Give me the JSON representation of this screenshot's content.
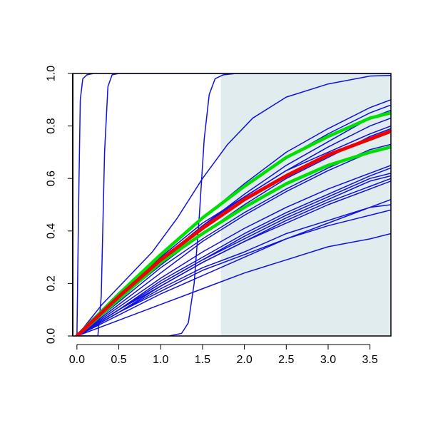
{
  "chart_data": {
    "type": "line",
    "title": "",
    "xlabel": "",
    "ylabel": "",
    "xlim": [
      -0.05,
      3.75
    ],
    "ylim": [
      0,
      1
    ],
    "grid": false,
    "legend": "none",
    "x_ticks": [
      "0.0",
      "0.5",
      "1.0",
      "1.5",
      "2.0",
      "2.5",
      "3.0",
      "3.5"
    ],
    "y_ticks": [
      "0.0",
      "0.2",
      "0.4",
      "0.6",
      "0.8",
      "1.0"
    ],
    "shaded_region": {
      "x": [
        1.72,
        3.75
      ],
      "color": "#e0eced"
    },
    "colors": {
      "blue": "#1010e0",
      "green": "#00e000",
      "red": "#f00000",
      "axis": "#000000"
    },
    "series": [
      {
        "color": "blue",
        "width": 1.5,
        "points": [
          [
            0.0,
            0.0
          ],
          [
            0.5,
            0.16
          ],
          [
            1.0,
            0.3
          ],
          [
            1.5,
            0.43
          ],
          [
            2.0,
            0.53
          ],
          [
            2.5,
            0.63
          ],
          [
            3.0,
            0.7
          ],
          [
            3.5,
            0.77
          ],
          [
            3.75,
            0.8
          ]
        ]
      },
      {
        "color": "blue",
        "width": 1.5,
        "points": [
          [
            0.0,
            0.0
          ],
          [
            0.5,
            0.15
          ],
          [
            1.0,
            0.29
          ],
          [
            1.5,
            0.42
          ],
          [
            2.0,
            0.53
          ],
          [
            2.5,
            0.63
          ],
          [
            3.0,
            0.72
          ],
          [
            3.5,
            0.8
          ],
          [
            3.75,
            0.83
          ]
        ]
      },
      {
        "color": "blue",
        "width": 1.5,
        "points": [
          [
            0.0,
            0.0
          ],
          [
            0.5,
            0.14
          ],
          [
            1.0,
            0.27
          ],
          [
            1.5,
            0.39
          ],
          [
            2.0,
            0.5
          ],
          [
            2.5,
            0.6
          ],
          [
            3.0,
            0.68
          ],
          [
            3.5,
            0.76
          ],
          [
            3.75,
            0.79
          ]
        ]
      },
      {
        "color": "blue",
        "width": 1.5,
        "points": [
          [
            0.0,
            0.0
          ],
          [
            0.5,
            0.15
          ],
          [
            1.0,
            0.29
          ],
          [
            1.5,
            0.42
          ],
          [
            2.0,
            0.54
          ],
          [
            2.5,
            0.65
          ],
          [
            3.0,
            0.74
          ],
          [
            3.5,
            0.83
          ],
          [
            3.75,
            0.86
          ]
        ]
      },
      {
        "color": "blue",
        "width": 1.5,
        "points": [
          [
            0.0,
            0.0
          ],
          [
            0.5,
            0.16
          ],
          [
            1.0,
            0.31
          ],
          [
            1.5,
            0.45
          ],
          [
            2.0,
            0.57
          ],
          [
            2.5,
            0.68
          ],
          [
            3.0,
            0.77
          ],
          [
            3.5,
            0.85
          ],
          [
            3.75,
            0.88
          ]
        ]
      },
      {
        "color": "blue",
        "width": 1.5,
        "points": [
          [
            0.0,
            0.0
          ],
          [
            0.5,
            0.16
          ],
          [
            1.0,
            0.31
          ],
          [
            1.5,
            0.45
          ],
          [
            2.0,
            0.58
          ],
          [
            2.5,
            0.7
          ],
          [
            3.0,
            0.79
          ],
          [
            3.5,
            0.87
          ],
          [
            3.75,
            0.9
          ]
        ]
      },
      {
        "color": "blue",
        "width": 1.5,
        "points": [
          [
            0.0,
            0.0
          ],
          [
            0.5,
            0.12
          ],
          [
            1.0,
            0.24
          ],
          [
            1.5,
            0.36
          ],
          [
            2.0,
            0.46
          ],
          [
            2.5,
            0.55
          ],
          [
            3.0,
            0.63
          ],
          [
            3.5,
            0.7
          ],
          [
            3.75,
            0.72
          ]
        ]
      },
      {
        "color": "blue",
        "width": 1.5,
        "points": [
          [
            0.0,
            0.0
          ],
          [
            0.5,
            0.13
          ],
          [
            1.0,
            0.26
          ],
          [
            1.5,
            0.37
          ],
          [
            2.0,
            0.47
          ],
          [
            2.5,
            0.56
          ],
          [
            3.0,
            0.64
          ],
          [
            3.5,
            0.71
          ],
          [
            3.75,
            0.73
          ]
        ]
      },
      {
        "color": "blue",
        "width": 1.5,
        "points": [
          [
            0.0,
            0.0
          ],
          [
            0.5,
            0.1
          ],
          [
            1.0,
            0.21
          ],
          [
            1.5,
            0.3
          ],
          [
            2.0,
            0.39
          ],
          [
            2.5,
            0.47
          ],
          [
            3.0,
            0.54
          ],
          [
            3.5,
            0.61
          ],
          [
            3.75,
            0.64
          ]
        ]
      },
      {
        "color": "blue",
        "width": 1.5,
        "points": [
          [
            0.0,
            0.0
          ],
          [
            0.5,
            0.1
          ],
          [
            1.0,
            0.2
          ],
          [
            1.5,
            0.29
          ],
          [
            2.0,
            0.38
          ],
          [
            2.5,
            0.46
          ],
          [
            3.0,
            0.53
          ],
          [
            3.5,
            0.6
          ],
          [
            3.75,
            0.62
          ]
        ]
      },
      {
        "color": "blue",
        "width": 1.5,
        "points": [
          [
            0.0,
            0.0
          ],
          [
            0.5,
            0.1
          ],
          [
            1.0,
            0.2
          ],
          [
            1.5,
            0.29
          ],
          [
            2.0,
            0.37
          ],
          [
            2.5,
            0.45
          ],
          [
            3.0,
            0.52
          ],
          [
            3.5,
            0.59
          ],
          [
            3.75,
            0.61
          ]
        ]
      },
      {
        "color": "blue",
        "width": 1.5,
        "points": [
          [
            0.0,
            0.0
          ],
          [
            0.5,
            0.1
          ],
          [
            1.0,
            0.19
          ],
          [
            1.5,
            0.28
          ],
          [
            2.0,
            0.36
          ],
          [
            2.5,
            0.44
          ],
          [
            3.0,
            0.51
          ],
          [
            3.5,
            0.57
          ],
          [
            3.75,
            0.6
          ]
        ]
      },
      {
        "color": "blue",
        "width": 1.5,
        "points": [
          [
            0.0,
            0.0
          ],
          [
            0.5,
            0.09
          ],
          [
            1.0,
            0.19
          ],
          [
            1.5,
            0.28
          ],
          [
            2.0,
            0.36
          ],
          [
            2.5,
            0.43
          ],
          [
            3.0,
            0.5
          ],
          [
            3.5,
            0.56
          ],
          [
            3.75,
            0.59
          ]
        ]
      },
      {
        "color": "blue",
        "width": 1.5,
        "points": [
          [
            0.0,
            0.0
          ],
          [
            0.5,
            0.11
          ],
          [
            1.0,
            0.22
          ],
          [
            1.5,
            0.32
          ],
          [
            2.0,
            0.41
          ],
          [
            2.5,
            0.49
          ],
          [
            3.0,
            0.56
          ],
          [
            3.5,
            0.62
          ],
          [
            3.75,
            0.65
          ]
        ]
      },
      {
        "color": "blue",
        "width": 1.5,
        "points": [
          [
            0.0,
            0.0
          ],
          [
            0.5,
            0.09
          ],
          [
            1.0,
            0.18
          ],
          [
            1.5,
            0.26
          ],
          [
            2.0,
            0.32
          ],
          [
            2.5,
            0.39
          ],
          [
            3.0,
            0.44
          ],
          [
            3.5,
            0.49
          ],
          [
            3.75,
            0.5
          ]
        ]
      },
      {
        "color": "blue",
        "width": 1.5,
        "points": [
          [
            0.0,
            0.0
          ],
          [
            0.5,
            0.09
          ],
          [
            1.0,
            0.17
          ],
          [
            1.5,
            0.25
          ],
          [
            2.0,
            0.31
          ],
          [
            2.5,
            0.37
          ],
          [
            3.0,
            0.42
          ],
          [
            3.5,
            0.46
          ],
          [
            3.75,
            0.48
          ]
        ]
      },
      {
        "color": "blue",
        "width": 1.5,
        "points": [
          [
            0.0,
            0.0
          ],
          [
            0.5,
            0.08
          ],
          [
            1.0,
            0.16
          ],
          [
            1.5,
            0.23
          ],
          [
            2.0,
            0.3
          ],
          [
            2.5,
            0.37
          ],
          [
            3.0,
            0.43
          ],
          [
            3.5,
            0.49
          ],
          [
            3.75,
            0.52
          ]
        ]
      },
      {
        "color": "blue",
        "width": 1.5,
        "points": [
          [
            0.0,
            0.0
          ],
          [
            0.5,
            0.06
          ],
          [
            1.0,
            0.12
          ],
          [
            1.5,
            0.18
          ],
          [
            2.0,
            0.24
          ],
          [
            2.5,
            0.29
          ],
          [
            3.0,
            0.34
          ],
          [
            3.5,
            0.37
          ],
          [
            3.75,
            0.39
          ]
        ]
      },
      {
        "color": "blue",
        "width": 1.5,
        "points": [
          [
            0.0,
            0.0
          ],
          [
            0.3,
            0.12
          ],
          [
            0.6,
            0.22
          ],
          [
            0.9,
            0.32
          ],
          [
            1.2,
            0.45
          ],
          [
            1.5,
            0.6
          ],
          [
            1.8,
            0.73
          ],
          [
            2.1,
            0.83
          ],
          [
            2.5,
            0.91
          ],
          [
            3.0,
            0.96
          ],
          [
            3.5,
            0.99
          ],
          [
            3.75,
            0.993
          ]
        ]
      },
      {
        "color": "blue",
        "width": 1.5,
        "points": [
          [
            0.0,
            0.0
          ],
          [
            0.02,
            0.5
          ],
          [
            0.04,
            0.9
          ],
          [
            0.07,
            0.98
          ],
          [
            0.12,
            0.995
          ],
          [
            0.2,
            1.0
          ],
          [
            3.75,
            1.0
          ]
        ]
      },
      {
        "color": "blue",
        "width": 1.5,
        "points": [
          [
            0.0,
            0.0
          ],
          [
            0.25,
            0.0
          ],
          [
            0.29,
            0.15
          ],
          [
            0.33,
            0.7
          ],
          [
            0.37,
            0.95
          ],
          [
            0.42,
            0.995
          ],
          [
            0.5,
            1.0
          ],
          [
            3.75,
            1.0
          ]
        ]
      },
      {
        "color": "blue",
        "width": 1.5,
        "points": [
          [
            0.0,
            0.0
          ],
          [
            1.1,
            0.0
          ],
          [
            1.25,
            0.01
          ],
          [
            1.33,
            0.05
          ],
          [
            1.4,
            0.2
          ],
          [
            1.46,
            0.45
          ],
          [
            1.52,
            0.75
          ],
          [
            1.58,
            0.92
          ],
          [
            1.65,
            0.98
          ],
          [
            1.75,
            0.995
          ],
          [
            1.9,
            1.0
          ],
          [
            3.75,
            1.0
          ]
        ]
      },
      {
        "color": "green",
        "width": 4.5,
        "points": [
          [
            0.0,
            0.0
          ],
          [
            0.5,
            0.14
          ],
          [
            1.0,
            0.28
          ],
          [
            1.5,
            0.39
          ],
          [
            2.0,
            0.49
          ],
          [
            2.5,
            0.58
          ],
          [
            3.0,
            0.65
          ],
          [
            3.5,
            0.7
          ],
          [
            3.75,
            0.72
          ]
        ]
      },
      {
        "color": "green",
        "width": 4.5,
        "points": [
          [
            0.0,
            0.0
          ],
          [
            0.5,
            0.16
          ],
          [
            1.0,
            0.31
          ],
          [
            1.5,
            0.45
          ],
          [
            2.0,
            0.57
          ],
          [
            2.5,
            0.68
          ],
          [
            3.0,
            0.76
          ],
          [
            3.5,
            0.83
          ],
          [
            3.75,
            0.85
          ]
        ]
      },
      {
        "color": "red",
        "width": 5,
        "points": [
          [
            0.0,
            0.0
          ],
          [
            0.5,
            0.15
          ],
          [
            1.0,
            0.29
          ],
          [
            1.5,
            0.41
          ],
          [
            2.0,
            0.52
          ],
          [
            2.5,
            0.61
          ],
          [
            3.0,
            0.69
          ],
          [
            3.5,
            0.75
          ],
          [
            3.75,
            0.78
          ]
        ]
      }
    ]
  }
}
